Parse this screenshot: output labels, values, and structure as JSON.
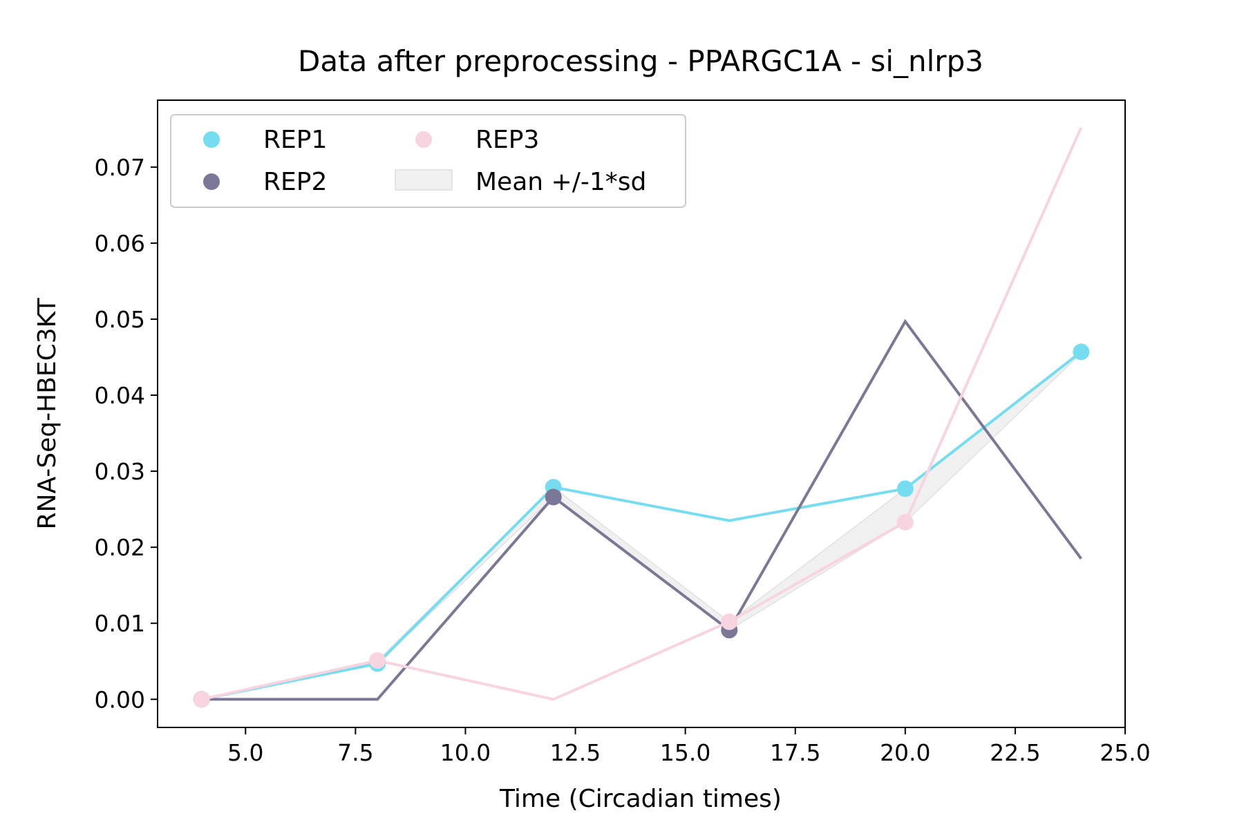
{
  "chart_data": {
    "type": "line",
    "title": "Data after preprocessing - PPARGC1A - si_nlrp3",
    "xlabel": "Time (Circadian times)",
    "ylabel": "RNA-Seq-HBEC3KT",
    "xlim": [
      3.0,
      25.0
    ],
    "ylim": [
      -0.0037,
      0.0788
    ],
    "xticks": [
      5.0,
      7.5,
      10.0,
      12.5,
      15.0,
      17.5,
      20.0,
      22.5,
      25.0
    ],
    "xtick_labels": [
      "5.0",
      "7.5",
      "10.0",
      "12.5",
      "15.0",
      "17.5",
      "20.0",
      "22.5",
      "25.0"
    ],
    "yticks": [
      0.0,
      0.01,
      0.02,
      0.03,
      0.04,
      0.05,
      0.06,
      0.07
    ],
    "ytick_labels": [
      "0.00",
      "0.01",
      "0.02",
      "0.03",
      "0.04",
      "0.05",
      "0.06",
      "0.07"
    ],
    "grid": false,
    "legend_position": "top-left",
    "x": [
      4,
      8,
      12,
      16,
      20,
      24
    ],
    "series": [
      {
        "name": "REP1",
        "color": "#76dcef",
        "values": [
          0.0,
          0.0047,
          0.0279,
          0.0235,
          0.0277,
          0.0457
        ],
        "markers": [
          true,
          true,
          true,
          false,
          true,
          true
        ],
        "line_width": 4
      },
      {
        "name": "REP2",
        "color": "#7a7896",
        "values": [
          0.0,
          0.0,
          0.0266,
          0.0091,
          0.0497,
          0.0185
        ],
        "markers": [
          true,
          false,
          true,
          true,
          false,
          false
        ],
        "line_width": 4
      },
      {
        "name": "REP3",
        "color": "#f7d4df",
        "values": [
          0.0,
          0.0051,
          0.0,
          0.0102,
          0.0233,
          0.0752
        ],
        "markers": [
          true,
          true,
          false,
          true,
          true,
          false
        ],
        "line_width": 4
      }
    ],
    "band": {
      "name": "Mean +/-1*sd",
      "color": "#bbbbbb",
      "fill": "#f0f0f0",
      "upper": [
        0.0,
        0.0051,
        0.0279,
        0.0102,
        0.0277,
        0.0457
      ],
      "lower": [
        0.0,
        0.0047,
        0.0266,
        0.0091,
        0.0233,
        0.0455
      ]
    }
  }
}
